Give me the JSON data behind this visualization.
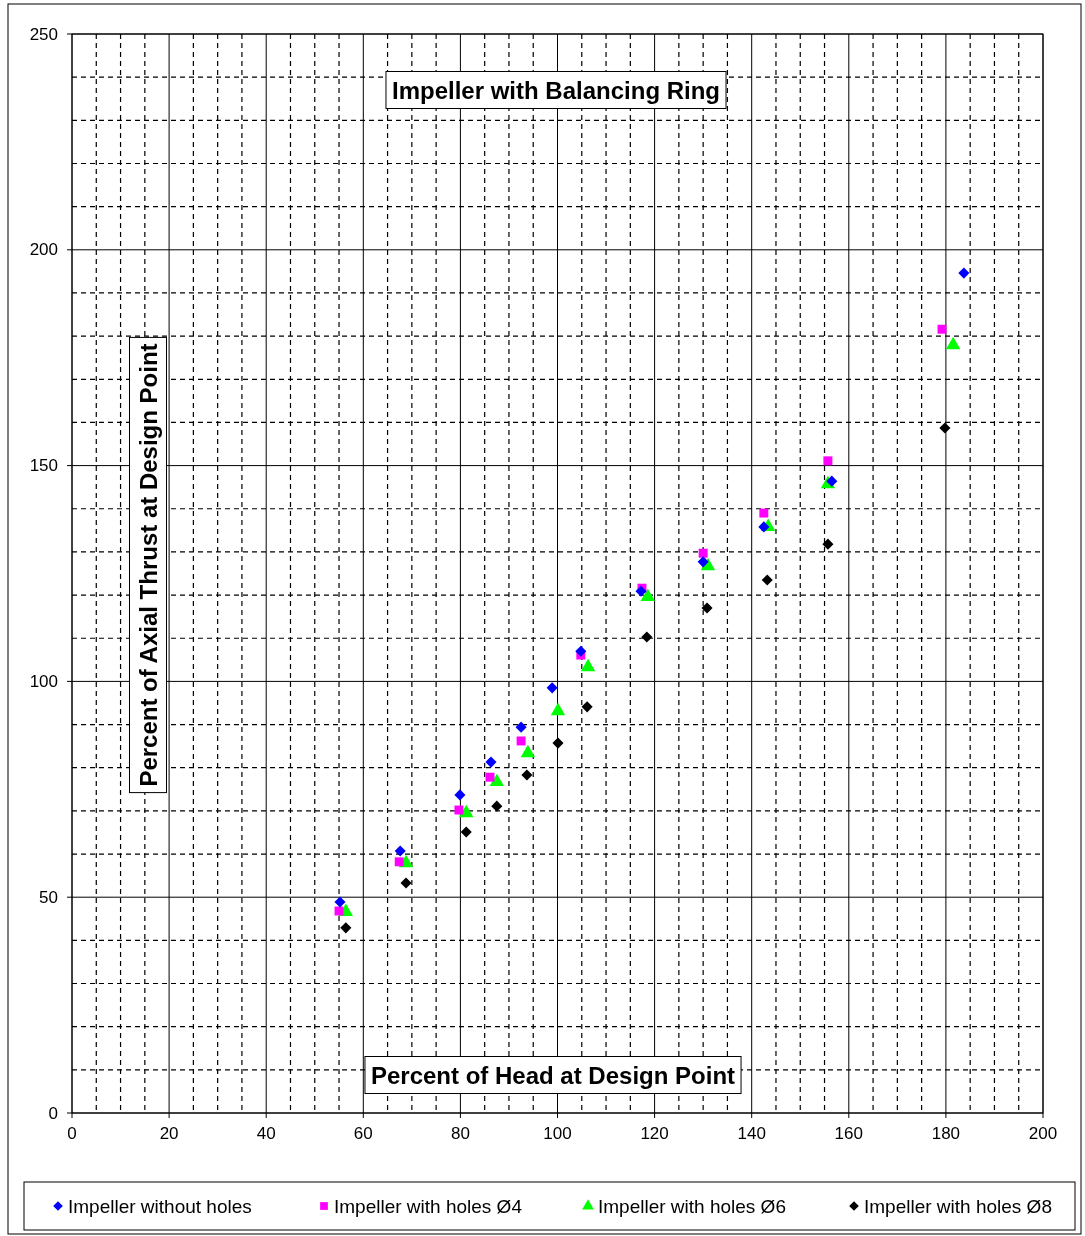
{
  "chart_data": {
    "type": "scatter",
    "title": "Impeller with Balancing Ring",
    "xlabel": "Percent of Head at Design Point",
    "ylabel": "Percent of Axial Thrust at Design Point",
    "xlim": [
      0,
      200
    ],
    "ylim": [
      0,
      250
    ],
    "xticks": [
      0,
      {
        "value": 5,
        "label": null
      },
      {
        "value": 10,
        "label": null
      },
      {
        "value": 15,
        "label": null
      },
      20,
      {
        "value": 25,
        "label": null
      },
      {
        "value": 30,
        "label": null
      },
      {
        "value": 35,
        "label": null
      },
      40,
      {
        "value": 45,
        "label": null
      },
      {
        "value": 50,
        "label": null
      },
      {
        "value": 55,
        "label": null
      },
      60,
      {
        "value": 65,
        "label": null
      },
      {
        "value": 70,
        "label": null
      },
      {
        "value": 75,
        "label": null
      },
      80,
      {
        "value": 85,
        "label": null
      },
      {
        "value": 90,
        "label": null
      },
      {
        "value": 95,
        "label": null
      },
      100,
      {
        "value": 105,
        "label": null
      },
      {
        "value": 110,
        "label": null
      },
      {
        "value": 115,
        "label": null
      },
      120,
      {
        "value": 125,
        "label": null
      },
      {
        "value": 130,
        "label": null
      },
      {
        "value": 135,
        "label": null
      },
      140,
      {
        "value": 145,
        "label": null
      },
      {
        "value": 150,
        "label": null
      },
      {
        "value": 155,
        "label": null
      },
      160,
      {
        "value": 165,
        "label": null
      },
      {
        "value": 170,
        "label": null
      },
      {
        "value": 175,
        "label": null
      },
      180,
      {
        "value": 185,
        "label": null
      },
      {
        "value": 190,
        "label": null
      },
      {
        "value": 195,
        "label": null
      },
      200
    ],
    "yticks": [
      0,
      {
        "value": 10,
        "label": null
      },
      {
        "value": 20,
        "label": null
      },
      {
        "value": 30,
        "label": null
      },
      {
        "value": 40,
        "label": null
      },
      50,
      {
        "value": 60,
        "label": null
      },
      {
        "value": 70,
        "label": null
      },
      {
        "value": 80,
        "label": null
      },
      {
        "value": 90,
        "label": null
      },
      100,
      {
        "value": 110,
        "label": null
      },
      {
        "value": 120,
        "label": null
      },
      {
        "value": 130,
        "label": null
      },
      {
        "value": 140,
        "label": null
      },
      150,
      {
        "value": 160,
        "label": null
      },
      {
        "value": 170,
        "label": null
      },
      {
        "value": 180,
        "label": null
      },
      {
        "value": 190,
        "label": null
      },
      200,
      {
        "value": 210,
        "label": null
      },
      {
        "value": 220,
        "label": null
      },
      {
        "value": 230,
        "label": null
      },
      {
        "value": 240,
        "label": null
      },
      250
    ],
    "grid": true,
    "legend": "bottom",
    "series": [
      {
        "name": "Impeller without holes",
        "color": "#0000ff",
        "marker": "diamond",
        "x": [
          55.2,
          67.6,
          79.9,
          86.3,
          92.5,
          98.9,
          104.8,
          117.2,
          130.0,
          142.5,
          156.5,
          183.7
        ],
        "values": [
          48.9,
          60.7,
          73.7,
          81.3,
          89.4,
          98.5,
          107.0,
          120.9,
          127.7,
          135.8,
          146.4,
          194.6
        ]
      },
      {
        "name": "Impeller with holes Ø4",
        "color": "#ff00ff",
        "marker": "square",
        "x": [
          55.0,
          67.4,
          79.7,
          86.1,
          92.5,
          104.8,
          117.4,
          130.0,
          142.5,
          155.7,
          179.2
        ],
        "values": [
          46.8,
          58.2,
          70.2,
          77.8,
          86.2,
          106.1,
          121.6,
          129.7,
          139.0,
          151.1,
          181.6
        ]
      },
      {
        "name": "Impeller with holes Ø6",
        "color": "#00ff00",
        "marker": "triangle",
        "x": [
          56.4,
          68.8,
          81.2,
          87.5,
          93.9,
          100.1,
          106.3,
          118.6,
          131.0,
          143.4,
          155.7,
          181.5
        ],
        "values": [
          46.6,
          57.9,
          69.5,
          76.7,
          83.4,
          93.1,
          103.3,
          119.6,
          126.7,
          135.8,
          145.7,
          177.9
        ]
      },
      {
        "name": "Impeller with holes Ø8",
        "color": "#000000",
        "marker": "diamond",
        "x": [
          56.4,
          68.8,
          81.2,
          87.5,
          93.7,
          100.1,
          106.1,
          118.4,
          130.8,
          143.2,
          155.7,
          179.8
        ],
        "values": [
          42.9,
          53.3,
          65.1,
          71.1,
          78.3,
          85.7,
          94.1,
          110.3,
          117.0,
          123.5,
          131.8,
          158.7
        ]
      }
    ]
  }
}
